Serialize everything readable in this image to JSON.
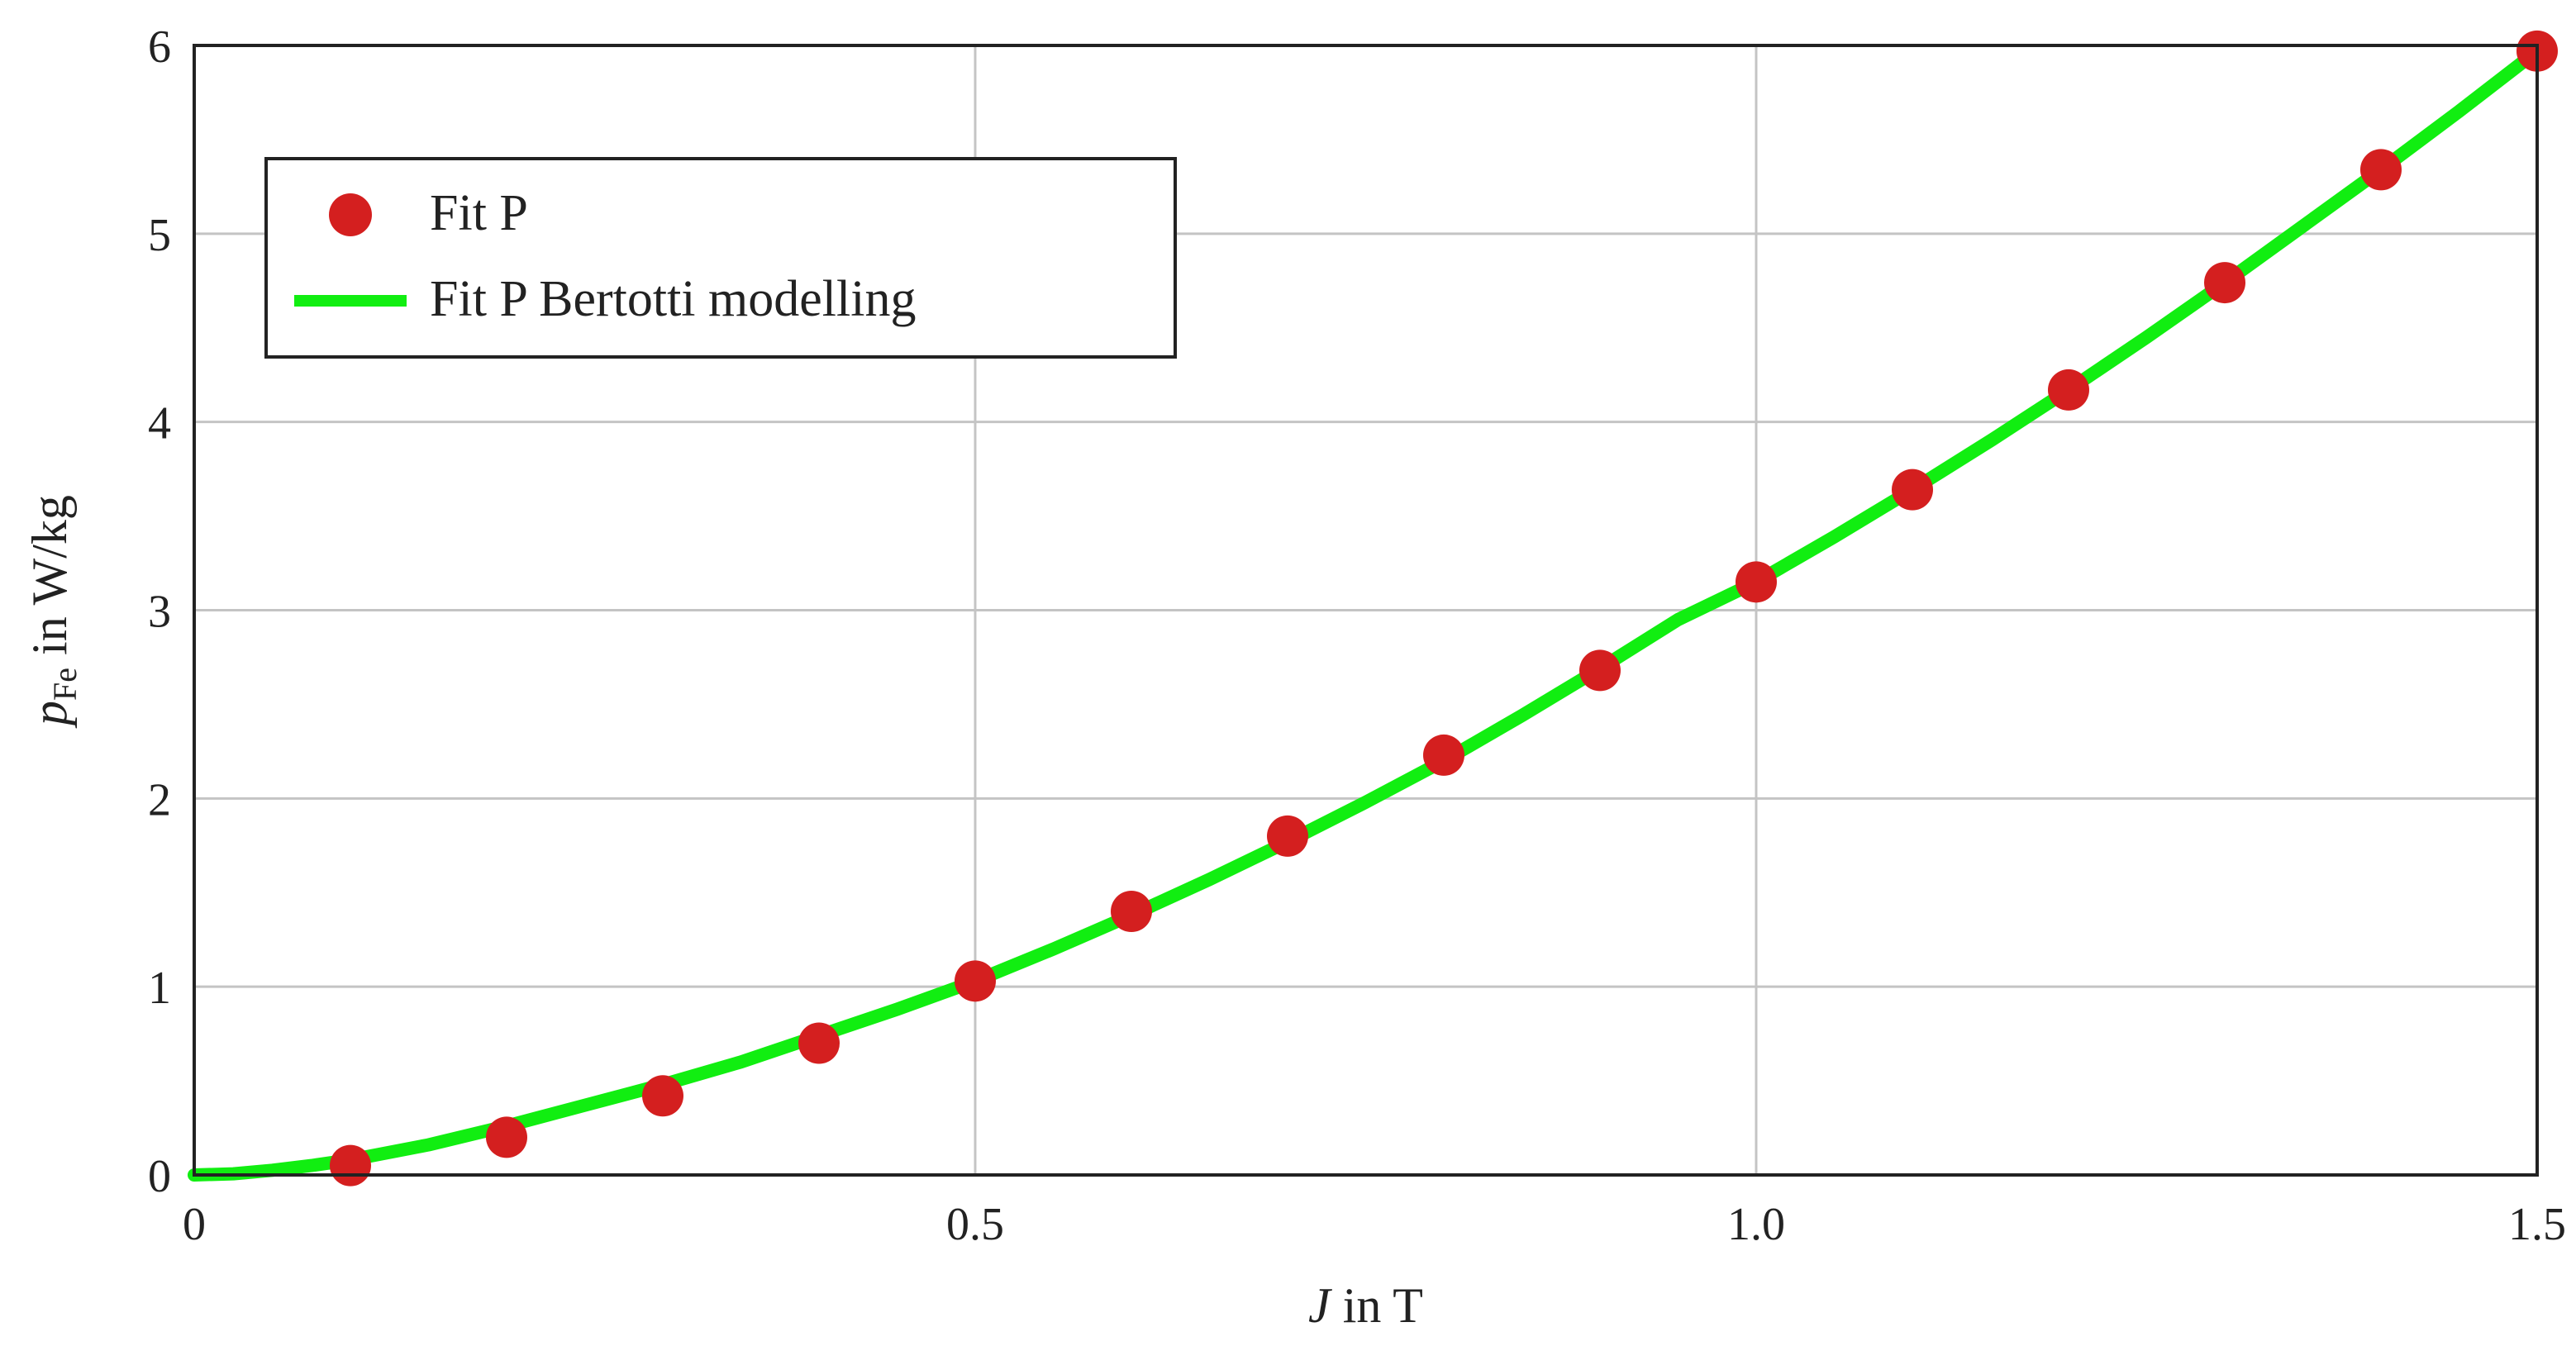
{
  "chart_data": {
    "type": "line",
    "title": "",
    "xlabel": {
      "var": "J",
      "rest": " in T"
    },
    "ylabel": {
      "var": "p",
      "sub": "Fe",
      "rest": " in W/kg"
    },
    "xlim": [
      0,
      1.5
    ],
    "ylim": [
      0,
      6
    ],
    "x_ticks": [
      0,
      0.5,
      1.0,
      1.5
    ],
    "x_tick_labels": [
      "0",
      "0.5",
      "1.0",
      "1.5"
    ],
    "y_ticks": [
      0,
      1,
      2,
      3,
      4,
      5,
      6
    ],
    "y_tick_labels": [
      "0",
      "1",
      "2",
      "3",
      "4",
      "5",
      "6"
    ],
    "grid": true,
    "legend_position": "top-left",
    "series": [
      {
        "name": "Fit P",
        "style": "markers",
        "color": "#d41f1f",
        "x": [
          0.1,
          0.2,
          0.3,
          0.4,
          0.5,
          0.6,
          0.7,
          0.8,
          0.9,
          1.0,
          1.1,
          1.2,
          1.3,
          1.4,
          1.5
        ],
        "y": [
          0.05,
          0.2,
          0.42,
          0.7,
          1.03,
          1.4,
          1.8,
          2.23,
          2.68,
          3.15,
          3.64,
          4.17,
          4.74,
          5.34,
          5.97
        ]
      },
      {
        "name": "Fit P Bertotti modelling",
        "style": "line",
        "color": "#11ee11",
        "x": [
          0,
          0.025,
          0.05,
          0.075,
          0.1,
          0.15,
          0.2,
          0.25,
          0.3,
          0.35,
          0.4,
          0.45,
          0.5,
          0.55,
          0.6,
          0.65,
          0.7,
          0.75,
          0.8,
          0.85,
          0.9,
          0.95,
          1.0,
          1.05,
          1.1,
          1.15,
          1.2,
          1.25,
          1.3,
          1.35,
          1.4,
          1.45,
          1.5
        ],
        "y": [
          0,
          0.006,
          0.025,
          0.05,
          0.08,
          0.16,
          0.26,
          0.37,
          0.48,
          0.6,
          0.74,
          0.88,
          1.03,
          1.2,
          1.38,
          1.57,
          1.77,
          1.98,
          2.2,
          2.44,
          2.69,
          2.95,
          3.15,
          3.39,
          3.64,
          3.9,
          4.17,
          4.45,
          4.74,
          5.04,
          5.34,
          5.65,
          5.97
        ]
      }
    ]
  }
}
